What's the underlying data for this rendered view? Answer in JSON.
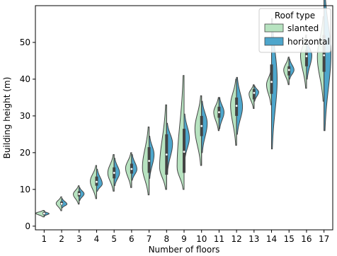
{
  "chart_data": {
    "type": "violin",
    "xlabel": "Number of floors",
    "ylabel": "Building height (m)",
    "categories": [
      "1",
      "2",
      "3",
      "4",
      "5",
      "6",
      "7",
      "8",
      "9",
      "10",
      "11",
      "12",
      "13",
      "14",
      "15",
      "16",
      "17"
    ],
    "yticks": [
      "0",
      "10",
      "20",
      "30",
      "40",
      "50"
    ],
    "ylim": [
      -1,
      60
    ],
    "grid": false,
    "legend": {
      "title": "Roof type",
      "placement": "top-right",
      "items": [
        {
          "label": "slanted",
          "color": "#b7e3c0"
        },
        {
          "label": "horizontal",
          "color": "#4da6cc"
        }
      ]
    },
    "series": [
      {
        "name": "slanted",
        "color": "#b7e3c0",
        "violins": [
          {
            "floor": 1,
            "min": 2.5,
            "q1": 3.2,
            "median": 3.5,
            "q3": 3.8,
            "max": 4.3,
            "peak": 3.5,
            "width": 0.5
          },
          {
            "floor": 2,
            "min": 4.2,
            "q1": 5.8,
            "median": 6.2,
            "q3": 6.7,
            "max": 8.0,
            "peak": 6.2,
            "width": 0.33
          },
          {
            "floor": 3,
            "min": 6.0,
            "q1": 8.1,
            "median": 8.7,
            "q3": 9.5,
            "max": 11.0,
            "peak": 8.7,
            "width": 0.35
          },
          {
            "floor": 4,
            "min": 7.5,
            "q1": 11.0,
            "median": 12.3,
            "q3": 13.5,
            "max": 16.5,
            "peak": 12.2,
            "width": 0.38
          },
          {
            "floor": 5,
            "min": 9.5,
            "q1": 13.0,
            "median": 14.5,
            "q3": 16.0,
            "max": 19.5,
            "peak": 14.5,
            "width": 0.38
          },
          {
            "floor": 6,
            "min": 10.5,
            "q1": 14.3,
            "median": 15.6,
            "q3": 17.0,
            "max": 20.0,
            "peak": 15.8,
            "width": 0.36
          },
          {
            "floor": 7,
            "min": 8.5,
            "q1": 14.5,
            "median": 16.0,
            "q3": 18.0,
            "max": 27.0,
            "peak": 16.0,
            "width": 0.4
          },
          {
            "floor": 8,
            "min": 10.0,
            "q1": 14.0,
            "median": 16.5,
            "q3": 19.0,
            "max": 33.0,
            "peak": 16.0,
            "width": 0.42
          },
          {
            "floor": 9,
            "min": 10.0,
            "q1": 14.5,
            "median": 16.5,
            "q3": 19.5,
            "max": 41.0,
            "peak": 16.0,
            "width": 0.42
          },
          {
            "floor": 10,
            "min": 16.5,
            "q1": 24.5,
            "median": 26.5,
            "q3": 28.5,
            "max": 35.5,
            "peak": 26.5,
            "width": 0.4
          },
          {
            "floor": 11,
            "min": 26.0,
            "q1": 29.5,
            "median": 31.0,
            "q3": 32.5,
            "max": 35.0,
            "peak": 31.0,
            "width": 0.32
          },
          {
            "floor": 12,
            "min": 22.0,
            "q1": 30.0,
            "median": 33.0,
            "q3": 35.0,
            "max": 40.0,
            "peak": 33.0,
            "width": 0.36
          },
          {
            "floor": 13,
            "min": 32.0,
            "q1": 34.5,
            "median": 36.0,
            "q3": 37.2,
            "max": 38.5,
            "peak": 36.0,
            "width": 0.3
          },
          {
            "floor": 14,
            "min": 33.0,
            "q1": 36.5,
            "median": 38.5,
            "q3": 40.0,
            "max": 42.5,
            "peak": 38.5,
            "width": 0.3
          },
          {
            "floor": 15,
            "min": 38.5,
            "q1": 41.0,
            "median": 42.5,
            "q3": 43.5,
            "max": 46.0,
            "peak": 42.5,
            "width": 0.32
          },
          {
            "floor": 16,
            "min": 37.5,
            "q1": 43.5,
            "median": 46.0,
            "q3": 48.0,
            "max": 52.0,
            "peak": 46.5,
            "width": 0.36
          },
          {
            "floor": 17,
            "min": 34.0,
            "q1": 42.0,
            "median": 46.0,
            "q3": 50.0,
            "max": 57.0,
            "peak": 46.0,
            "width": 0.4
          }
        ]
      },
      {
        "name": "horizontal",
        "color": "#4da6cc",
        "violins": [
          {
            "floor": 1,
            "min": 2.8,
            "q1": 3.1,
            "median": 3.4,
            "q3": 3.7,
            "max": 4.0,
            "peak": 3.4,
            "width": 0.3
          },
          {
            "floor": 2,
            "min": 5.0,
            "q1": 5.8,
            "median": 6.0,
            "q3": 6.5,
            "max": 7.5,
            "peak": 6.0,
            "width": 0.32
          },
          {
            "floor": 3,
            "min": 7.0,
            "q1": 8.2,
            "median": 8.8,
            "q3": 9.3,
            "max": 10.5,
            "peak": 8.8,
            "width": 0.3
          },
          {
            "floor": 4,
            "min": 9.5,
            "q1": 11.0,
            "median": 11.8,
            "q3": 12.8,
            "max": 15.5,
            "peak": 11.5,
            "width": 0.34
          },
          {
            "floor": 5,
            "min": 11.0,
            "q1": 13.5,
            "median": 14.5,
            "q3": 15.5,
            "max": 18.5,
            "peak": 14.5,
            "width": 0.33
          },
          {
            "floor": 6,
            "min": 12.5,
            "q1": 14.5,
            "median": 15.5,
            "q3": 16.5,
            "max": 19.5,
            "peak": 15.5,
            "width": 0.32
          },
          {
            "floor": 7,
            "min": 13.0,
            "q1": 16.5,
            "median": 19.5,
            "q3": 21.5,
            "max": 24.5,
            "peak": 19.5,
            "width": 0.3
          },
          {
            "floor": 8,
            "min": 14.5,
            "q1": 19.5,
            "median": 22.5,
            "q3": 25.0,
            "max": 28.0,
            "peak": 22.5,
            "width": 0.36
          },
          {
            "floor": 9,
            "min": 18.0,
            "q1": 21.5,
            "median": 24.0,
            "q3": 26.5,
            "max": 30.5,
            "peak": 24.0,
            "width": 0.32
          },
          {
            "floor": 10,
            "min": 20.0,
            "q1": 26.0,
            "median": 28.0,
            "q3": 30.0,
            "max": 34.0,
            "peak": 28.0,
            "width": 0.34
          },
          {
            "floor": 11,
            "min": 26.5,
            "q1": 29.5,
            "median": 31.0,
            "q3": 32.5,
            "max": 35.0,
            "peak": 31.0,
            "width": 0.3
          },
          {
            "floor": 12,
            "min": 25.0,
            "q1": 30.0,
            "median": 32.5,
            "q3": 35.0,
            "max": 40.5,
            "peak": 32.5,
            "width": 0.36
          },
          {
            "floor": 13,
            "min": 34.0,
            "q1": 35.5,
            "median": 36.5,
            "q3": 37.3,
            "max": 38.2,
            "peak": 36.5,
            "width": 0.28
          },
          {
            "floor": 14,
            "min": 21.0,
            "q1": 36.0,
            "median": 40.0,
            "q3": 44.0,
            "max": 56.5,
            "peak": 40.0,
            "width": 0.34
          },
          {
            "floor": 15,
            "min": 40.0,
            "q1": 41.5,
            "median": 42.5,
            "q3": 43.3,
            "max": 45.5,
            "peak": 42.5,
            "width": 0.3
          },
          {
            "floor": 16,
            "min": 40.0,
            "q1": 44.5,
            "median": 46.5,
            "q3": 48.0,
            "max": 50.5,
            "peak": 46.5,
            "width": 0.32
          },
          {
            "floor": 17,
            "min": 26.0,
            "q1": 42.0,
            "median": 47.0,
            "q3": 52.0,
            "max": 64.0,
            "peak": 47.0,
            "width": 0.42
          }
        ]
      }
    ]
  }
}
